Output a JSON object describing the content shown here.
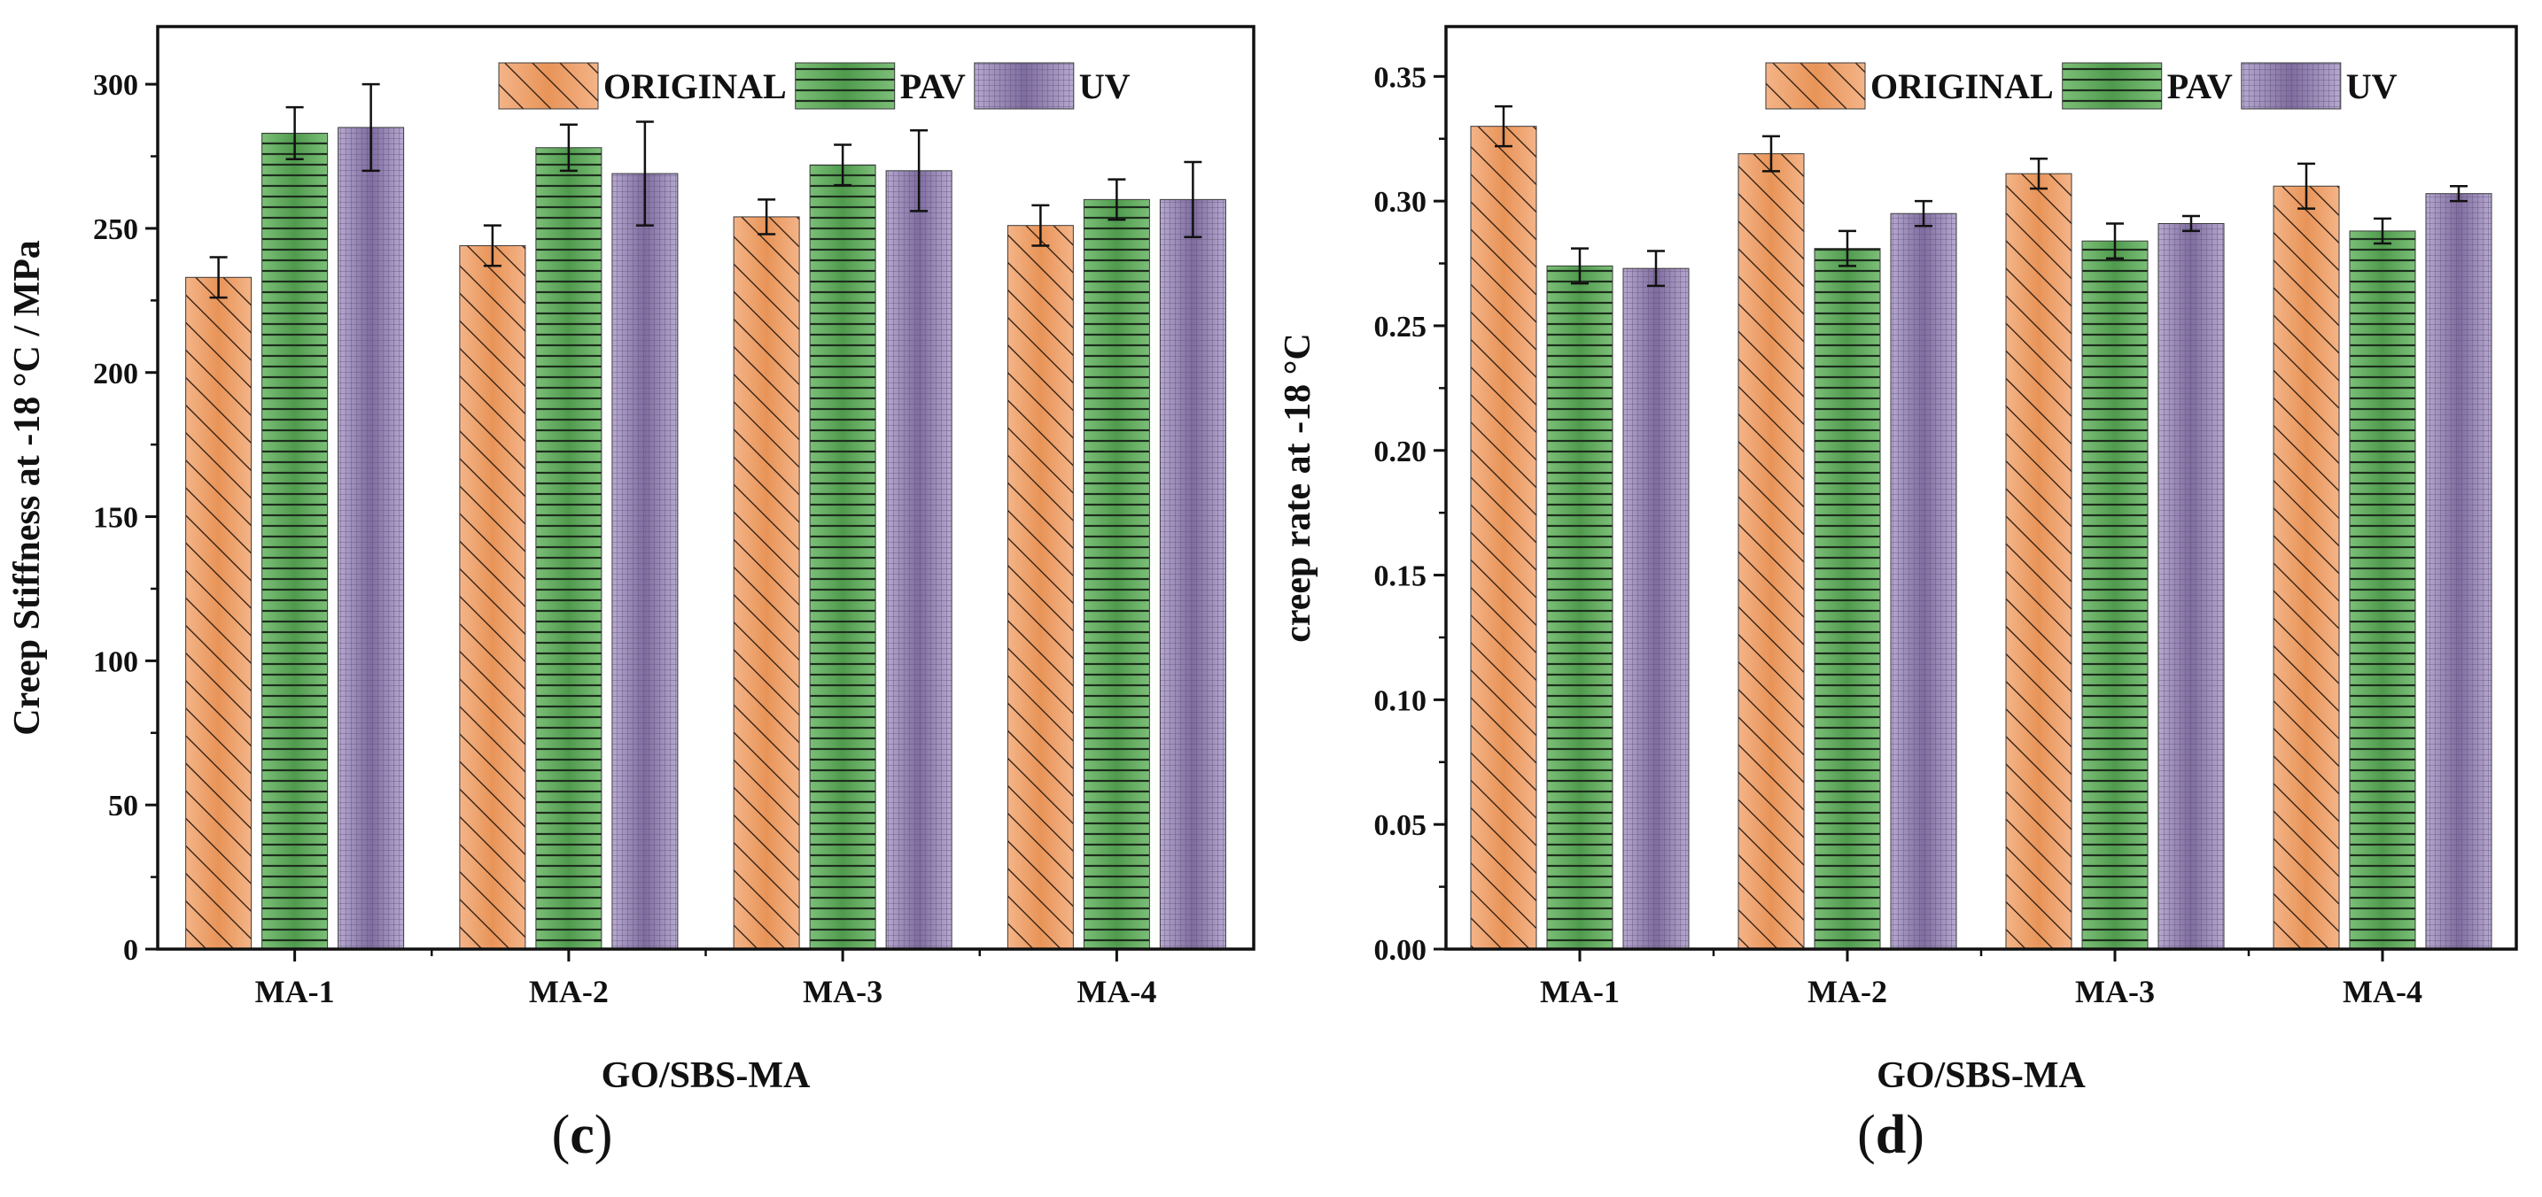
{
  "chart_data": [
    {
      "panel": "c",
      "type": "bar",
      "title": "",
      "categories": [
        "MA-1",
        "MA-2",
        "MA-3",
        "MA-4"
      ],
      "series": [
        {
          "name": "ORIGINAL",
          "values": [
            233,
            244,
            254,
            251
          ],
          "errors": [
            7,
            7,
            6,
            7
          ]
        },
        {
          "name": "PAV",
          "values": [
            283,
            278,
            272,
            260
          ],
          "errors": [
            9,
            8,
            7,
            7
          ]
        },
        {
          "name": "UV",
          "values": [
            285,
            269,
            270,
            260
          ],
          "errors": [
            15,
            18,
            14,
            13
          ]
        }
      ],
      "xlabel": "GO/SBS-MA",
      "ylabel": "Creep Stiffness at -18 °C / MPa",
      "ylim": [
        0,
        320
      ],
      "yticks": [
        0,
        50,
        100,
        150,
        200,
        250,
        300
      ],
      "ytick_labels": [
        "0",
        "50",
        "100",
        "150",
        "200",
        "250",
        "300"
      ],
      "legend_position": "top-right",
      "grid": false
    },
    {
      "panel": "d",
      "type": "bar",
      "title": "",
      "categories": [
        "MA-1",
        "MA-2",
        "MA-3",
        "MA-4"
      ],
      "series": [
        {
          "name": "ORIGINAL",
          "values": [
            0.33,
            0.319,
            0.311,
            0.306
          ],
          "errors": [
            0.008,
            0.007,
            0.006,
            0.009
          ]
        },
        {
          "name": "PAV",
          "values": [
            0.274,
            0.281,
            0.284,
            0.288
          ],
          "errors": [
            0.007,
            0.007,
            0.007,
            0.005
          ]
        },
        {
          "name": "UV",
          "values": [
            0.273,
            0.295,
            0.291,
            0.303
          ],
          "errors": [
            0.007,
            0.005,
            0.003,
            0.003
          ]
        }
      ],
      "xlabel": "GO/SBS-MA",
      "ylabel": "creep rate at -18 °C",
      "ylim": [
        0,
        0.37
      ],
      "yticks": [
        0,
        0.05,
        0.1,
        0.15,
        0.2,
        0.25,
        0.3,
        0.35
      ],
      "ytick_labels": [
        "0.00",
        "0.05",
        "0.10",
        "0.15",
        "0.20",
        "0.25",
        "0.30",
        "0.35"
      ],
      "legend_position": "top-right",
      "grid": false
    }
  ],
  "series_colors": {
    "ORIGINAL": "#e8965f",
    "PAV": "#5fa35c",
    "UV": "#9b8bb6"
  },
  "panel_labels": [
    {
      "open": "(",
      "letter": "c",
      "close": ")"
    },
    {
      "open": "(",
      "letter": "d",
      "close": ")"
    }
  ]
}
